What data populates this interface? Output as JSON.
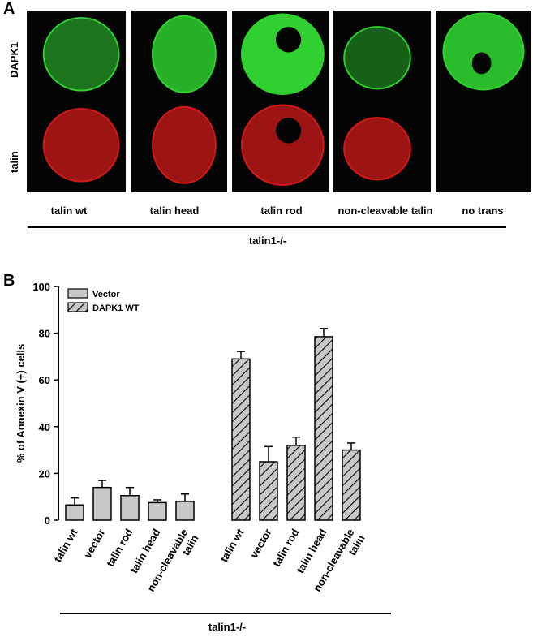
{
  "panel_a": {
    "letter": "A",
    "row_labels": [
      "DAPK1",
      "talin"
    ],
    "columns": [
      {
        "label": "talin wt"
      },
      {
        "label": "talin head"
      },
      {
        "label": "talin rod"
      },
      {
        "label": "non-cleavable talin"
      },
      {
        "label": "no trans"
      }
    ],
    "group_label": "talin1-/-",
    "colors": {
      "dapk1": "#2fd02f",
      "talin": "#d01a1a",
      "background": "#050505"
    }
  },
  "panel_b": {
    "letter": "B",
    "group_label": "talin1-/-"
  },
  "chart_data": {
    "type": "bar",
    "ylabel": "% of Annexin V (+) cells",
    "ylim": [
      0,
      100
    ],
    "yticks": [
      0,
      20,
      40,
      60,
      80,
      100
    ],
    "legend": {
      "placement": "top-left",
      "entries": [
        "Vector",
        "DAPK1 WT"
      ]
    },
    "categories": [
      "talin wt",
      "vector",
      "talin rod",
      "talin head",
      "non-cleavable talin"
    ],
    "series": [
      {
        "name": "Vector",
        "values": [
          6.5,
          14,
          10.5,
          7.5,
          8
        ],
        "errors": [
          3,
          3,
          3.5,
          1.2,
          3.2
        ],
        "fill": "#c8c8c8",
        "pattern": "solid"
      },
      {
        "name": "DAPK1 WT",
        "values": [
          69,
          25,
          32,
          78.5,
          30
        ],
        "errors": [
          3.2,
          6.5,
          3.5,
          3.5,
          3
        ],
        "fill": "#c8c8c8",
        "pattern": "hatch"
      }
    ],
    "grid": false
  }
}
